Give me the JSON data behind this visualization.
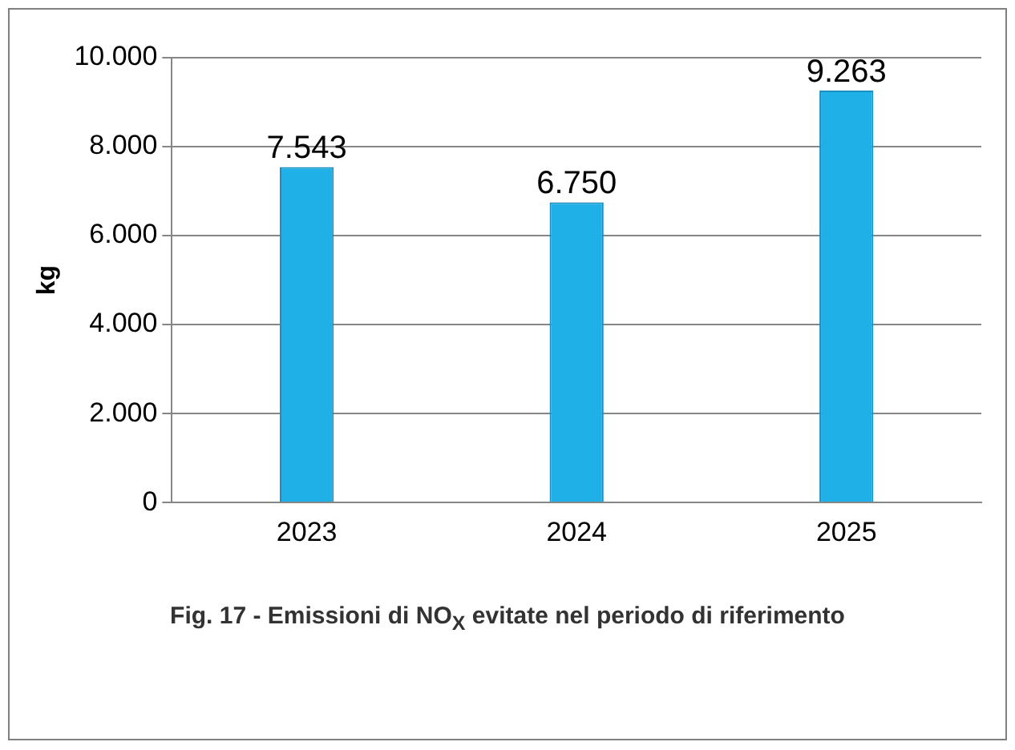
{
  "chart_data": {
    "type": "bar",
    "title": "Fig. 17 - Emissioni di NO$_{X}$ evitate nel periodo di riferimento",
    "ylabel": "kg",
    "categories": [
      "2023",
      "2024",
      "2025"
    ],
    "values": [
      7543,
      6750,
      9263
    ],
    "color": "#1fb0e8",
    "value_labels": [
      "7.543",
      "6.750",
      "9.263"
    ],
    "ylim": [
      0,
      10000
    ],
    "yticks": [
      {
        "value": 0,
        "label": "0"
      },
      {
        "value": 2000,
        "label": "2.000"
      },
      {
        "value": 4000,
        "label": "4.000"
      },
      {
        "value": 6000,
        "label": "6.000"
      },
      {
        "value": 8000,
        "label": "8.000"
      },
      {
        "value": 10000,
        "label": "10.000"
      }
    ],
    "grid": "y",
    "legend": false
  }
}
